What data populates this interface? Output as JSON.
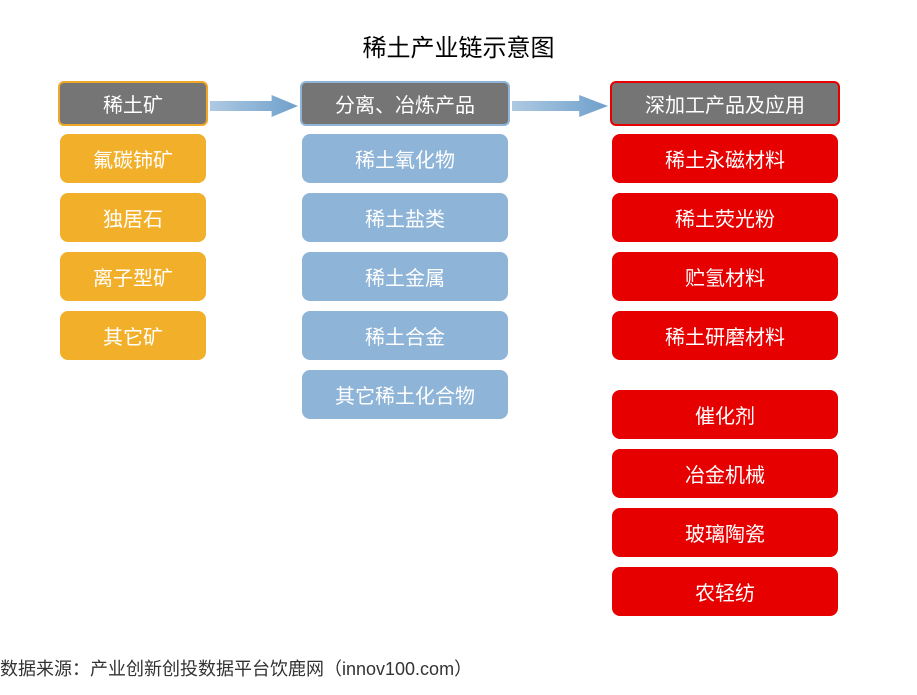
{
  "title": "稀土产业链示意图",
  "source": "数据来源：产业创新创投数据平台饮鹿网（innov100.com）",
  "colors": {
    "header_bg": "#757575",
    "header_border_c1": "#f0a829",
    "header_border_c2": "#8eb4d7",
    "header_border_c3": "#e60000",
    "col1_bg": "#f2b02a",
    "col1_border": "#ffffff",
    "col2_bg": "#8eb4d7",
    "col2_border": "#ffffff",
    "col3_bg": "#e60000",
    "col3_border": "#ffffff",
    "arrow_start": "#aec9e2",
    "arrow_end": "#6fa0cc"
  },
  "columns": [
    {
      "header": "稀土矿",
      "items": [
        "氟碳铈矿",
        "独居石",
        "离子型矿",
        "其它矿"
      ],
      "groups": [
        4
      ]
    },
    {
      "header": "分离、冶炼产品",
      "items": [
        "稀土氧化物",
        "稀土盐类",
        "稀土金属",
        "稀土合金",
        "其它稀土化合物"
      ],
      "groups": [
        5
      ]
    },
    {
      "header": "深加工产品及应用",
      "items": [
        "稀土永磁材料",
        "稀土荧光粉",
        "贮氢材料",
        "稀土研磨材料",
        "催化剂",
        "冶金机械",
        "玻璃陶瓷",
        "农轻纺"
      ],
      "groups": [
        4,
        4
      ]
    }
  ]
}
